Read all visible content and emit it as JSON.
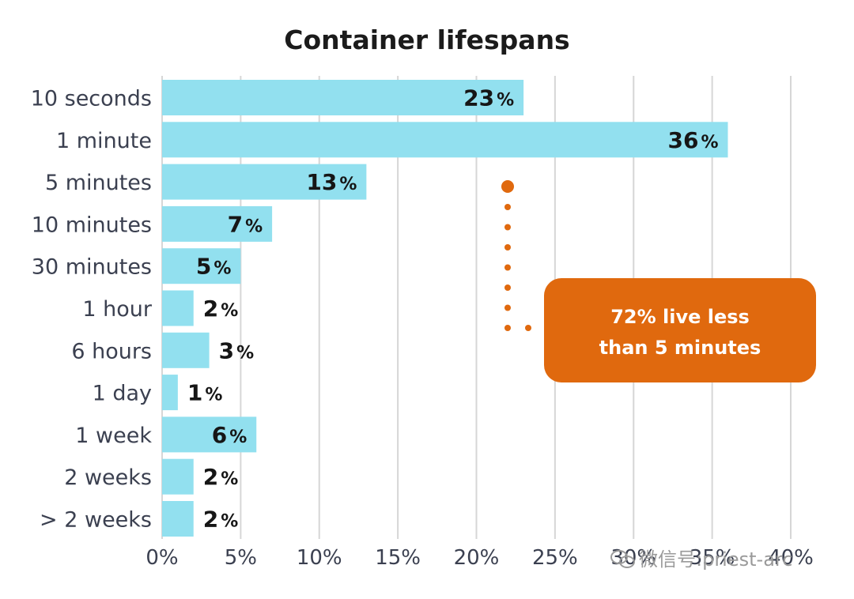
{
  "chart_data": {
    "type": "bar",
    "orientation": "horizontal",
    "title": "Container lifespans",
    "categories": [
      "10 seconds",
      "1 minute",
      "5 minutes",
      "10 minutes",
      "30 minutes",
      "1 hour",
      "6 hours",
      "1 day",
      "1 week",
      "2 weeks",
      "> 2 weeks"
    ],
    "values": [
      23,
      36,
      13,
      7,
      5,
      2,
      3,
      1,
      6,
      2,
      2
    ],
    "value_labels": [
      "23",
      "36",
      "13",
      "7",
      "5",
      "2",
      "3",
      "1",
      "6",
      "2",
      "2"
    ],
    "value_suffix": "%",
    "xlim": [
      0,
      40
    ],
    "x_ticks": [
      0,
      5,
      10,
      15,
      20,
      25,
      30,
      35,
      40
    ],
    "x_tick_labels": [
      "0%",
      "5%",
      "10%",
      "15%",
      "20%",
      "25%",
      "30%",
      "35%",
      "40%"
    ],
    "grid": true,
    "annotation": {
      "lines": [
        "72% live less",
        "than 5 minutes"
      ]
    }
  },
  "watermark": "微信号:priest-arc",
  "colors": {
    "bar": "#92e0ef",
    "accent": "#e0690e",
    "grid": "#d6d6d6",
    "text": "#3b4050"
  }
}
